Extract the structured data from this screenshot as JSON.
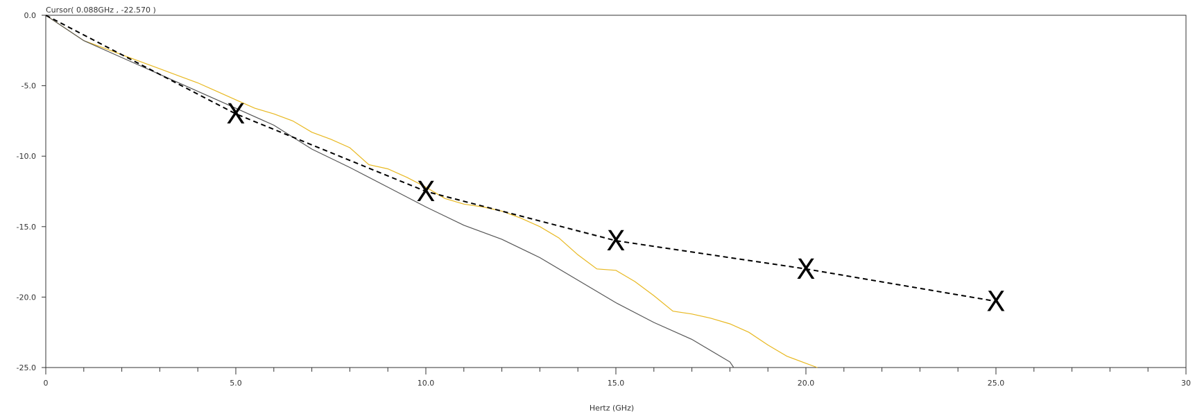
{
  "cursor_readout": "Cursor( 0.088GHz , -22.570 )",
  "chart_data": {
    "type": "line",
    "xlabel": "Hertz (GHz)",
    "ylabel": "",
    "xlim": [
      0,
      30
    ],
    "ylim": [
      -25,
      0
    ],
    "x_ticks": [
      0,
      5,
      10,
      15,
      20,
      25,
      30
    ],
    "x_tick_labels": [
      "0",
      "5.0",
      "10.0",
      "15.0",
      "20.0",
      "25.0",
      "30"
    ],
    "y_ticks": [
      0,
      -5,
      -10,
      -15,
      -20,
      -25
    ],
    "y_tick_labels": [
      "0.0",
      "-5.0",
      "-10.0",
      "-15.0",
      "-20.0",
      "-25.0"
    ],
    "grid": false,
    "series": [
      {
        "color": "#e8b820",
        "style": "solid",
        "points": [
          [
            0,
            0
          ],
          [
            0.5,
            -0.9
          ],
          [
            1,
            -1.8
          ],
          [
            1.5,
            -2.3
          ],
          [
            2,
            -2.8
          ],
          [
            2.5,
            -3.3
          ],
          [
            3,
            -3.8
          ],
          [
            3.5,
            -4.3
          ],
          [
            4,
            -4.8
          ],
          [
            4.5,
            -5.4
          ],
          [
            5,
            -6.0
          ],
          [
            5.5,
            -6.6
          ],
          [
            6,
            -7.0
          ],
          [
            6.5,
            -7.5
          ],
          [
            7,
            -8.3
          ],
          [
            7.5,
            -8.8
          ],
          [
            8,
            -9.4
          ],
          [
            8.5,
            -10.6
          ],
          [
            9,
            -10.9
          ],
          [
            9.5,
            -11.5
          ],
          [
            10,
            -12.2
          ],
          [
            10.5,
            -13.0
          ],
          [
            11,
            -13.4
          ],
          [
            11.5,
            -13.6
          ],
          [
            12,
            -13.9
          ],
          [
            12.5,
            -14.4
          ],
          [
            13,
            -15.0
          ],
          [
            13.5,
            -15.8
          ],
          [
            14,
            -17.0
          ],
          [
            14.5,
            -18.0
          ],
          [
            15,
            -18.1
          ],
          [
            15.5,
            -18.9
          ],
          [
            16,
            -19.9
          ],
          [
            16.5,
            -21.0
          ],
          [
            17,
            -21.2
          ],
          [
            17.5,
            -21.5
          ],
          [
            18,
            -21.9
          ],
          [
            18.5,
            -22.5
          ],
          [
            19,
            -23.4
          ],
          [
            19.5,
            -24.2
          ],
          [
            20,
            -24.7
          ],
          [
            20.3,
            -25
          ]
        ]
      },
      {
        "color": "#555555",
        "style": "solid",
        "points": [
          [
            0,
            0
          ],
          [
            1,
            -1.8
          ],
          [
            2,
            -3.0
          ],
          [
            3,
            -4.2
          ],
          [
            4,
            -5.4
          ],
          [
            5,
            -6.6
          ],
          [
            6,
            -7.8
          ],
          [
            7,
            -9.5
          ],
          [
            8,
            -10.8
          ],
          [
            9,
            -12.2
          ],
          [
            10,
            -13.6
          ],
          [
            11,
            -14.9
          ],
          [
            12,
            -15.9
          ],
          [
            13,
            -17.2
          ],
          [
            14,
            -18.8
          ],
          [
            15,
            -20.4
          ],
          [
            16,
            -21.8
          ],
          [
            17,
            -23.0
          ],
          [
            18,
            -24.6
          ],
          [
            18.1,
            -25
          ]
        ]
      },
      {
        "color": "#000000",
        "style": "dashed",
        "points": [
          [
            0,
            0
          ],
          [
            5,
            -7.0
          ],
          [
            10,
            -12.5
          ],
          [
            15,
            -16.0
          ],
          [
            20,
            -18.0
          ],
          [
            25,
            -20.3
          ]
        ]
      }
    ],
    "markers": {
      "symbol": "X",
      "points": [
        [
          5,
          -7.0
        ],
        [
          10,
          -12.5
        ],
        [
          15,
          -16.0
        ],
        [
          20,
          -18.0
        ],
        [
          25,
          -20.3
        ]
      ]
    }
  }
}
